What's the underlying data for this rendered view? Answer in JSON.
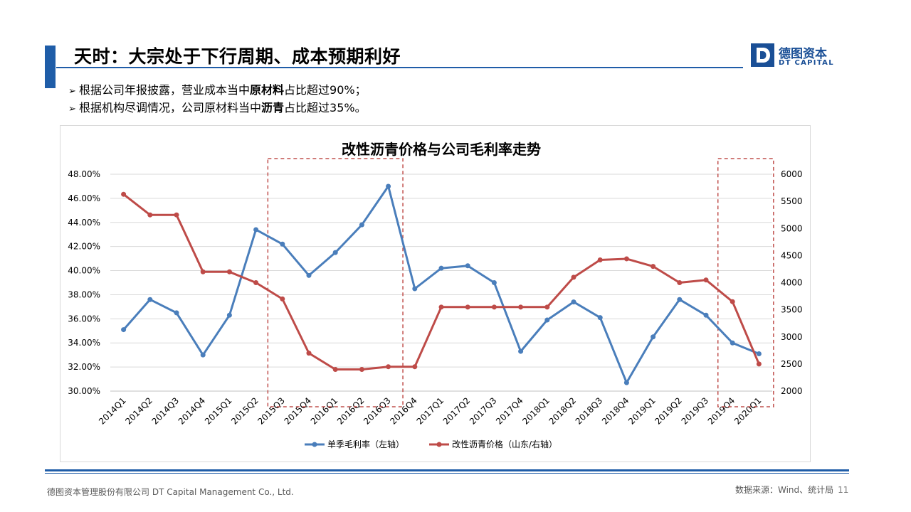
{
  "slide": {
    "title": "天时：大宗处于下行周期、成本预期利好",
    "bullets": [
      {
        "arrow": "➢",
        "before": "根据公司年报披露，营业成本当中",
        "bold": "原材料",
        "after": "占比超过90%；"
      },
      {
        "arrow": "➢",
        "before": "根据机构尽调情况，公司原材料当中",
        "bold": "沥青",
        "after": "占比超过35%。"
      }
    ],
    "footer_left": "德图资本管理股份有限公司  DT Capital Management  Co., Ltd.",
    "source": "数据来源：Wind、统计局",
    "page_number": "11"
  },
  "logo": {
    "mark": "D",
    "cn": "德图资本",
    "en": "DT CAPITAL"
  },
  "colors": {
    "brand": "#1f5da8",
    "series1": "#4a7ebb",
    "series2": "#be4b48",
    "highlight": "#c0504d",
    "grid": "#d9d9d9"
  },
  "chart_data": {
    "type": "line",
    "title": "改性沥青价格与公司毛利率走势",
    "categories": [
      "2014Q1",
      "2014Q2",
      "2014Q3",
      "2014Q4",
      "2015Q1",
      "2015Q2",
      "2015Q3",
      "2015Q4",
      "2016Q1",
      "2016Q2",
      "2016Q3",
      "2016Q4",
      "2017Q1",
      "2017Q2",
      "2017Q3",
      "2017Q4",
      "2018Q1",
      "2018Q2",
      "2018Q3",
      "2018Q4",
      "2019Q1",
      "2019Q2",
      "2019Q3",
      "2019Q4",
      "2020Q1"
    ],
    "y_left": {
      "min": 0.3,
      "max": 0.48,
      "step": 0.02,
      "ticks": [
        "30.00%",
        "32.00%",
        "34.00%",
        "36.00%",
        "38.00%",
        "40.00%",
        "42.00%",
        "44.00%",
        "46.00%",
        "48.00%"
      ]
    },
    "y_right": {
      "min": 2000,
      "max": 6000,
      "step": 500,
      "ticks": [
        "2000",
        "2500",
        "3000",
        "3500",
        "4000",
        "4500",
        "5000",
        "5500",
        "6000"
      ]
    },
    "grid": true,
    "legend_position": "bottom",
    "series": [
      {
        "name": "单季毛利率（左轴）",
        "axis": "left",
        "values": [
          0.351,
          0.376,
          0.365,
          0.33,
          0.363,
          0.434,
          0.422,
          0.396,
          0.415,
          0.438,
          0.47,
          0.385,
          0.402,
          0.404,
          0.39,
          0.333,
          0.359,
          0.374,
          0.361,
          0.307,
          0.345,
          0.376,
          0.363,
          0.34,
          0.331
        ]
      },
      {
        "name": "改性沥青价格（山东/右轴）",
        "axis": "right",
        "values": [
          5630,
          5250,
          5250,
          4200,
          4200,
          4000,
          3700,
          2700,
          2400,
          2400,
          2450,
          2450,
          3550,
          3550,
          3550,
          3550,
          3550,
          4100,
          4420,
          4440,
          4300,
          4000,
          4050,
          3650,
          2500
        ]
      }
    ],
    "highlights": [
      {
        "from": "2015Q3",
        "to": "2016Q3"
      },
      {
        "from": "2019Q4",
        "to": "2020Q1"
      }
    ]
  }
}
